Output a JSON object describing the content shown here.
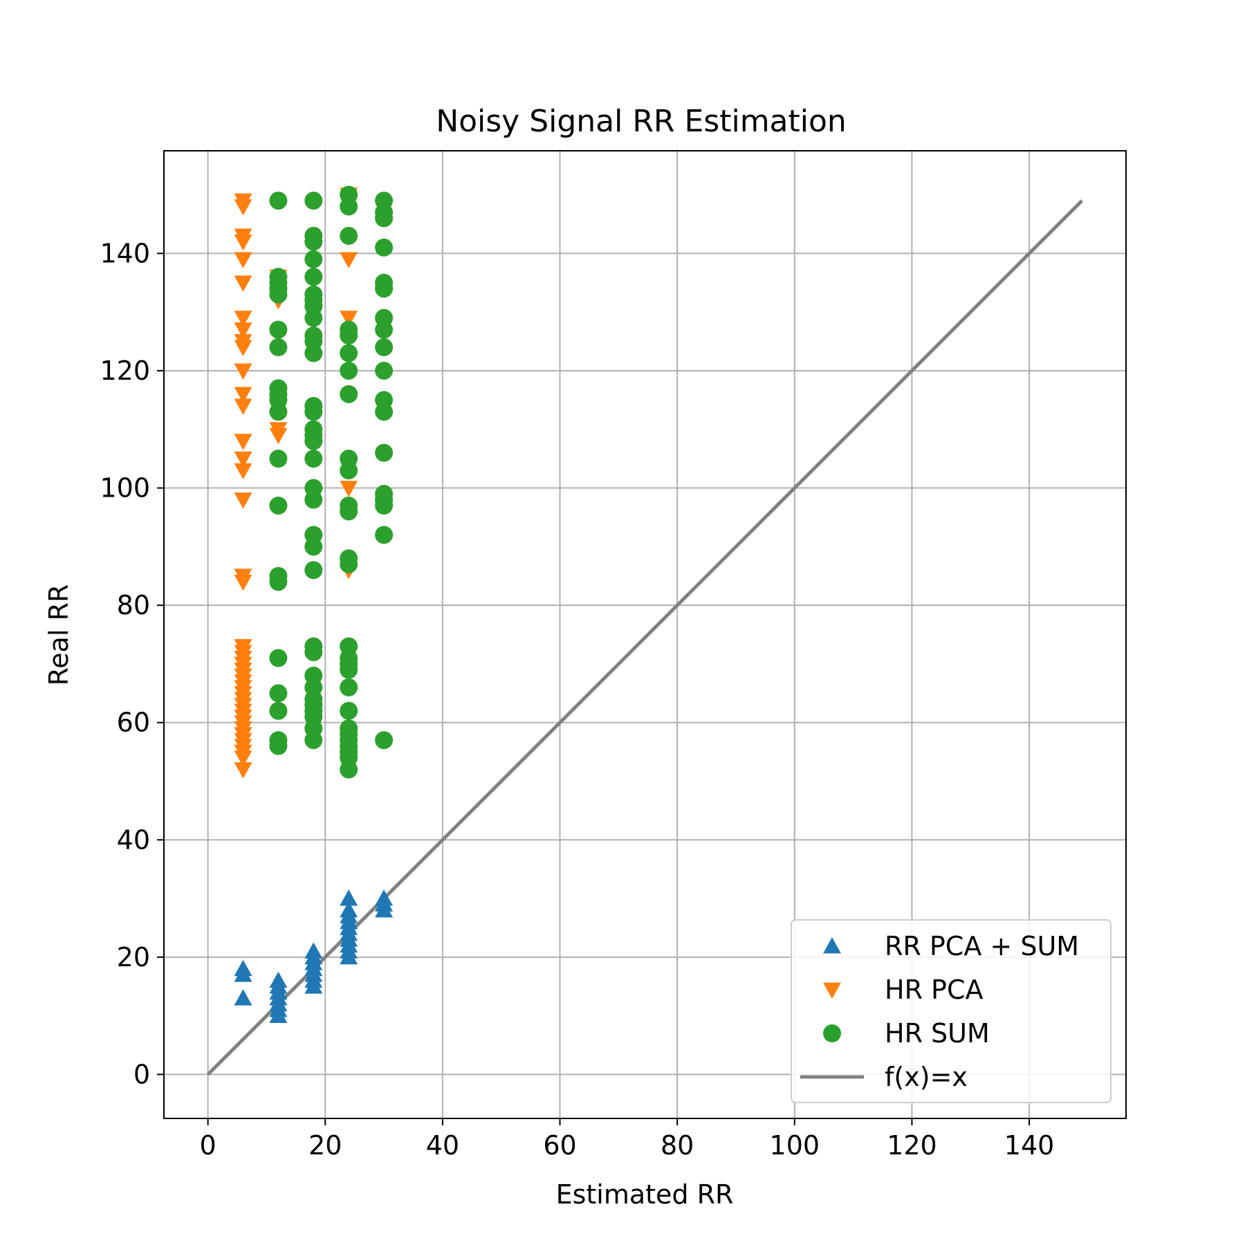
{
  "chart_data": {
    "type": "scatter",
    "title": "Noisy Signal RR Estimation",
    "xlabel": "Estimated RR",
    "ylabel": "Real RR",
    "xlim": [
      -7.5,
      156.5
    ],
    "ylim": [
      -7.5,
      157.5
    ],
    "xticks": [
      0,
      20,
      40,
      60,
      80,
      100,
      120,
      140
    ],
    "yticks": [
      0,
      20,
      40,
      60,
      80,
      100,
      120,
      140
    ],
    "grid": true,
    "legend_position": "lower-right",
    "series": [
      {
        "name": "RR PCA + SUM",
        "marker": "triangle-up",
        "color": "#1f77b4",
        "points": [
          [
            6,
            18
          ],
          [
            6,
            17
          ],
          [
            6,
            13
          ],
          [
            12,
            16
          ],
          [
            12,
            15
          ],
          [
            12,
            14
          ],
          [
            12,
            13
          ],
          [
            12,
            12
          ],
          [
            12,
            11
          ],
          [
            12,
            10
          ],
          [
            18,
            21
          ],
          [
            18,
            20
          ],
          [
            18,
            19
          ],
          [
            18,
            18
          ],
          [
            18,
            17
          ],
          [
            18,
            16
          ],
          [
            18,
            15
          ],
          [
            24,
            30
          ],
          [
            24,
            28
          ],
          [
            24,
            27
          ],
          [
            24,
            26
          ],
          [
            24,
            25
          ],
          [
            24,
            24
          ],
          [
            24,
            23
          ],
          [
            24,
            22
          ],
          [
            24,
            21
          ],
          [
            24,
            20
          ],
          [
            30,
            30
          ],
          [
            30,
            29
          ],
          [
            30,
            28
          ]
        ]
      },
      {
        "name": "HR PCA",
        "marker": "triangle-down",
        "color": "#ff7f0e",
        "points": [
          [
            6,
            149
          ],
          [
            6,
            148
          ],
          [
            6,
            143
          ],
          [
            6,
            142
          ],
          [
            6,
            139
          ],
          [
            6,
            135
          ],
          [
            6,
            129
          ],
          [
            6,
            127
          ],
          [
            6,
            125
          ],
          [
            6,
            124
          ],
          [
            6,
            120
          ],
          [
            6,
            116
          ],
          [
            6,
            114
          ],
          [
            6,
            108
          ],
          [
            6,
            105
          ],
          [
            6,
            103
          ],
          [
            6,
            98
          ],
          [
            6,
            85
          ],
          [
            6,
            84
          ],
          [
            6,
            73
          ],
          [
            6,
            72
          ],
          [
            6,
            71
          ],
          [
            6,
            70
          ],
          [
            6,
            69
          ],
          [
            6,
            68
          ],
          [
            6,
            67
          ],
          [
            6,
            66
          ],
          [
            6,
            65
          ],
          [
            6,
            64
          ],
          [
            6,
            63
          ],
          [
            6,
            62
          ],
          [
            6,
            61
          ],
          [
            6,
            60
          ],
          [
            6,
            59
          ],
          [
            6,
            58
          ],
          [
            6,
            57
          ],
          [
            6,
            56
          ],
          [
            6,
            55
          ],
          [
            6,
            54
          ],
          [
            6,
            52
          ],
          [
            12,
            136
          ],
          [
            12,
            132
          ],
          [
            12,
            110
          ],
          [
            12,
            109
          ],
          [
            24,
            150
          ],
          [
            24,
            139
          ],
          [
            24,
            129
          ],
          [
            24,
            100
          ],
          [
            24,
            86
          ]
        ]
      },
      {
        "name": "HR SUM",
        "marker": "circle",
        "color": "#2ca02c",
        "points": [
          [
            12,
            149
          ],
          [
            12,
            136
          ],
          [
            12,
            135
          ],
          [
            12,
            134
          ],
          [
            12,
            133
          ],
          [
            12,
            127
          ],
          [
            12,
            124
          ],
          [
            12,
            117
          ],
          [
            12,
            116
          ],
          [
            12,
            115
          ],
          [
            12,
            113
          ],
          [
            12,
            105
          ],
          [
            12,
            97
          ],
          [
            12,
            85
          ],
          [
            12,
            84
          ],
          [
            12,
            71
          ],
          [
            12,
            65
          ],
          [
            12,
            62
          ],
          [
            12,
            57
          ],
          [
            12,
            56
          ],
          [
            18,
            149
          ],
          [
            18,
            143
          ],
          [
            18,
            142
          ],
          [
            18,
            139
          ],
          [
            18,
            136
          ],
          [
            18,
            133
          ],
          [
            18,
            132
          ],
          [
            18,
            131
          ],
          [
            18,
            129
          ],
          [
            18,
            126
          ],
          [
            18,
            125
          ],
          [
            18,
            123
          ],
          [
            18,
            114
          ],
          [
            18,
            113
          ],
          [
            18,
            110
          ],
          [
            18,
            109
          ],
          [
            18,
            108
          ],
          [
            18,
            105
          ],
          [
            18,
            100
          ],
          [
            18,
            98
          ],
          [
            18,
            92
          ],
          [
            18,
            90
          ],
          [
            18,
            86
          ],
          [
            18,
            73
          ],
          [
            18,
            72
          ],
          [
            18,
            68
          ],
          [
            18,
            66
          ],
          [
            18,
            64
          ],
          [
            18,
            63
          ],
          [
            18,
            62
          ],
          [
            18,
            61
          ],
          [
            18,
            59
          ],
          [
            18,
            57
          ],
          [
            24,
            150
          ],
          [
            24,
            148
          ],
          [
            24,
            143
          ],
          [
            24,
            127
          ],
          [
            24,
            126
          ],
          [
            24,
            123
          ],
          [
            24,
            120
          ],
          [
            24,
            116
          ],
          [
            24,
            105
          ],
          [
            24,
            103
          ],
          [
            24,
            97
          ],
          [
            24,
            96
          ],
          [
            24,
            88
          ],
          [
            24,
            87
          ],
          [
            24,
            73
          ],
          [
            24,
            71
          ],
          [
            24,
            70
          ],
          [
            24,
            69
          ],
          [
            24,
            66
          ],
          [
            24,
            62
          ],
          [
            24,
            59
          ],
          [
            24,
            58
          ],
          [
            24,
            57
          ],
          [
            24,
            56
          ],
          [
            24,
            55
          ],
          [
            24,
            54
          ],
          [
            24,
            52
          ],
          [
            30,
            149
          ],
          [
            30,
            147
          ],
          [
            30,
            146
          ],
          [
            30,
            141
          ],
          [
            30,
            135
          ],
          [
            30,
            134
          ],
          [
            30,
            129
          ],
          [
            30,
            127
          ],
          [
            30,
            124
          ],
          [
            30,
            120
          ],
          [
            30,
            115
          ],
          [
            30,
            113
          ],
          [
            30,
            106
          ],
          [
            30,
            99
          ],
          [
            30,
            98
          ],
          [
            30,
            97
          ],
          [
            30,
            92
          ],
          [
            30,
            57
          ]
        ]
      },
      {
        "name": "f(x)=x",
        "marker": "line",
        "color": "#808080",
        "points": [
          [
            0,
            0
          ],
          [
            149,
            149
          ]
        ]
      }
    ]
  }
}
